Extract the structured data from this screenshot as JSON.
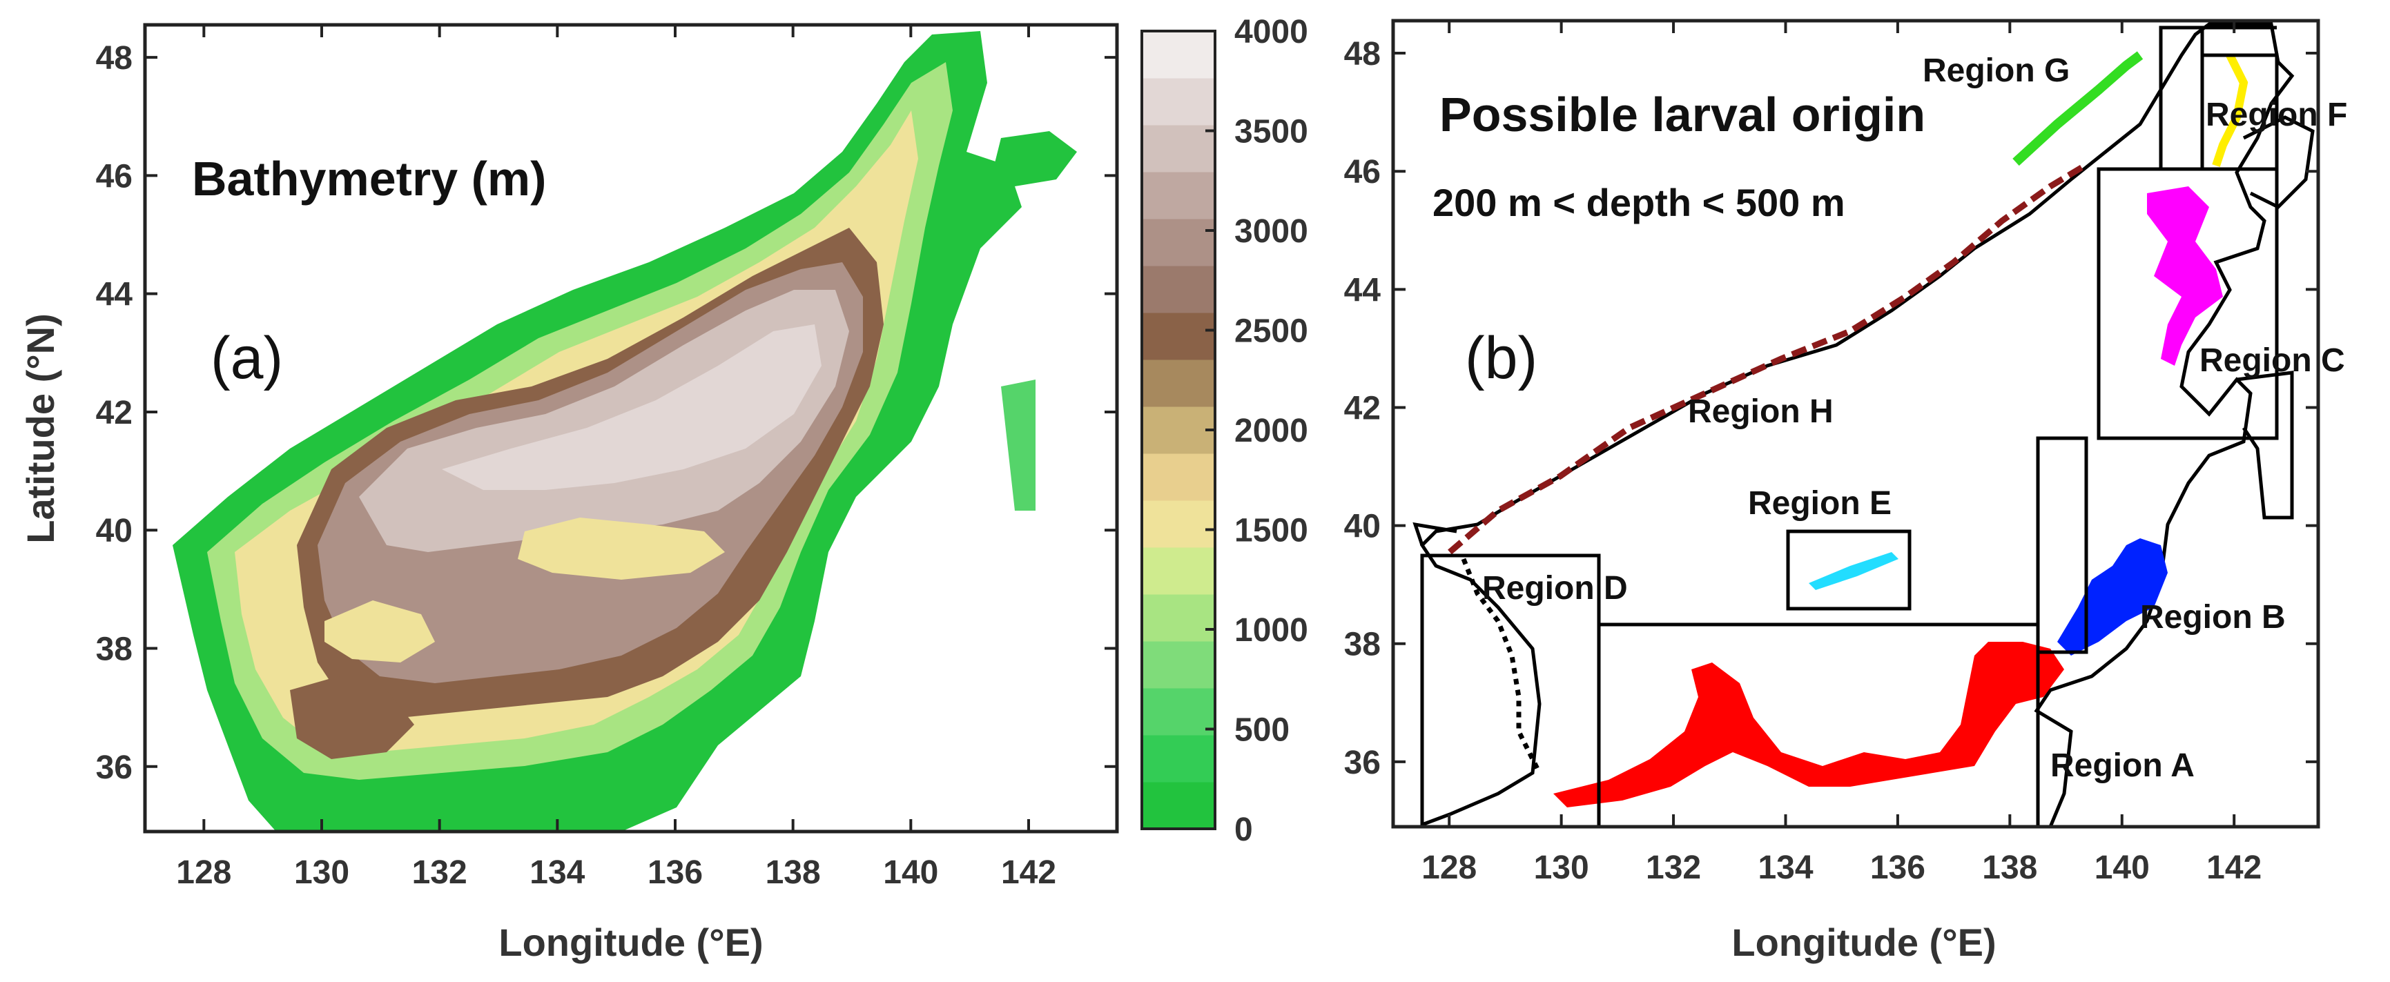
{
  "panel_a": {
    "letter": "(a)",
    "title": "Bathymetry (m)",
    "xlabel": "Longitude (°E)",
    "ylabel": "Latitude (°N)",
    "xticks": [
      "128",
      "130",
      "132",
      "134",
      "136",
      "138",
      "140",
      "142"
    ],
    "yticks": [
      "36",
      "38",
      "40",
      "42",
      "44",
      "46",
      "48"
    ],
    "colorbar": {
      "ticks": [
        "0",
        "500",
        "1000",
        "1500",
        "2000",
        "2500",
        "3000",
        "3500",
        "4000"
      ],
      "colors": [
        "#22c33e",
        "#33cc55",
        "#55d46a",
        "#7fdc7a",
        "#a8e482",
        "#cfeb8e",
        "#efe29a",
        "#e8cf8e",
        "#c9b176",
        "#a7895e",
        "#8a6248",
        "#9b7a6c",
        "#ad9187",
        "#bfa8a1",
        "#d1c1bc",
        "#e2d7d5",
        "#f0ebea"
      ]
    }
  },
  "panel_b": {
    "letter": "(b)",
    "title": "Possible larval origin",
    "subtitle": "200 m < depth < 500 m",
    "xlabel": "Longitude (°E)",
    "xticks": [
      "128",
      "130",
      "132",
      "134",
      "136",
      "138",
      "140",
      "142"
    ],
    "yticks": [
      "36",
      "38",
      "40",
      "42",
      "44",
      "46",
      "48"
    ],
    "regions": [
      {
        "label": "Region A",
        "color": "#ff0000"
      },
      {
        "label": "Region B",
        "color": "#0022ff"
      },
      {
        "label": "Region C",
        "color": "#ff00ff"
      },
      {
        "label": "Region D",
        "color": "#000000"
      },
      {
        "label": "Region E",
        "color": "#22ddff"
      },
      {
        "label": "Region F",
        "color": "#ffee00"
      },
      {
        "label": "Region G",
        "color": "#33dd22"
      },
      {
        "label": "Region H",
        "color": "#8b1a1a"
      }
    ]
  }
}
